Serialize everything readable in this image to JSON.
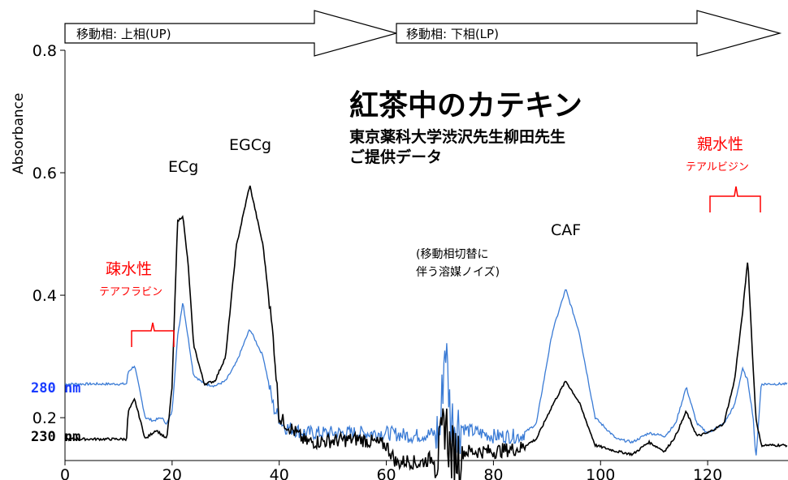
{
  "colors": {
    "trace_280": "#3a7bd5",
    "trace_230": "#000000",
    "label_280": "#1a3cff",
    "annotation": "#ff0000"
  },
  "phases": [
    {
      "label": "移動相: 上相(UP)"
    },
    {
      "label": "移動相: 下相(LP)"
    }
  ],
  "title": "紅茶中のカテキン",
  "credit_line1": "東京薬科大学渋沢先生柳田先生",
  "credit_line2": "ご提供データ",
  "peaks": {
    "ecg": "ECg",
    "egcg": "EGCg",
    "caf": "CAF"
  },
  "hydrophobic": {
    "label": "疎水性",
    "sub": "テアフラビン"
  },
  "hydrophilic": {
    "label": "親水性",
    "sub": "テアルビジン"
  },
  "noise_note": {
    "line1": "(移動相切替に",
    "line2": "伴う溶媒ノイズ)"
  },
  "wavelengths": {
    "w280": "280 nm",
    "w230": "230 nm"
  },
  "chart_data": {
    "type": "line",
    "ylabel": "Absorbance",
    "xlabel": "",
    "xlim": [
      0,
      135
    ],
    "ylim": [
      0.13,
      0.8
    ],
    "xticks": [
      0,
      20,
      40,
      60,
      80,
      100,
      120
    ],
    "yticks": [
      0.2,
      0.4,
      0.6,
      0.8
    ],
    "ytick_labels": [
      "0.2",
      "0.4",
      "0.6",
      "0.8"
    ],
    "series": [
      {
        "name": "280 nm",
        "x": [
          0,
          11.5,
          11.8,
          13,
          15,
          16.5,
          18,
          19,
          20,
          21,
          22,
          23,
          24,
          26,
          28,
          30,
          32,
          34.5,
          37,
          39,
          41,
          45,
          55,
          60,
          65,
          70,
          71,
          72,
          75,
          80,
          85,
          88,
          91,
          93.5,
          96,
          99,
          103,
          106,
          109,
          112,
          114,
          116,
          118,
          120,
          123,
          125,
          126.5,
          127.5,
          128.5,
          129,
          130,
          135
        ],
        "y": [
          0.255,
          0.255,
          0.275,
          0.285,
          0.2,
          0.195,
          0.2,
          0.19,
          0.21,
          0.33,
          0.39,
          0.33,
          0.27,
          0.255,
          0.252,
          0.26,
          0.29,
          0.345,
          0.3,
          0.215,
          0.185,
          0.175,
          0.175,
          0.175,
          0.17,
          0.175,
          0.33,
          0.2,
          0.18,
          0.17,
          0.17,
          0.19,
          0.34,
          0.41,
          0.34,
          0.2,
          0.165,
          0.16,
          0.175,
          0.17,
          0.19,
          0.25,
          0.19,
          0.175,
          0.19,
          0.22,
          0.28,
          0.26,
          0.2,
          0.13,
          0.255,
          0.255
        ]
      },
      {
        "name": "230 nm",
        "x": [
          0,
          11.5,
          11.8,
          13,
          15,
          17,
          19,
          20,
          21,
          22,
          23,
          24,
          26,
          28,
          30,
          32,
          34.5,
          37,
          39,
          40,
          45,
          55,
          60,
          62,
          64,
          66,
          70,
          71,
          72,
          75,
          80,
          85,
          88,
          91,
          93.5,
          96,
          99,
          103,
          106,
          109,
          112,
          114,
          116,
          118,
          120,
          123,
          125,
          126.5,
          127.5,
          128.5,
          129,
          130,
          135
        ],
        "y": [
          0.165,
          0.165,
          0.21,
          0.23,
          0.165,
          0.18,
          0.165,
          0.25,
          0.52,
          0.53,
          0.45,
          0.32,
          0.255,
          0.26,
          0.3,
          0.48,
          0.58,
          0.48,
          0.32,
          0.2,
          0.16,
          0.165,
          0.155,
          0.125,
          0.13,
          0.125,
          0.14,
          0.2,
          0.14,
          0.145,
          0.145,
          0.15,
          0.165,
          0.22,
          0.26,
          0.225,
          0.155,
          0.145,
          0.14,
          0.16,
          0.145,
          0.17,
          0.21,
          0.17,
          0.175,
          0.19,
          0.26,
          0.37,
          0.46,
          0.28,
          0.2,
          0.155,
          0.155
        ]
      }
    ]
  }
}
